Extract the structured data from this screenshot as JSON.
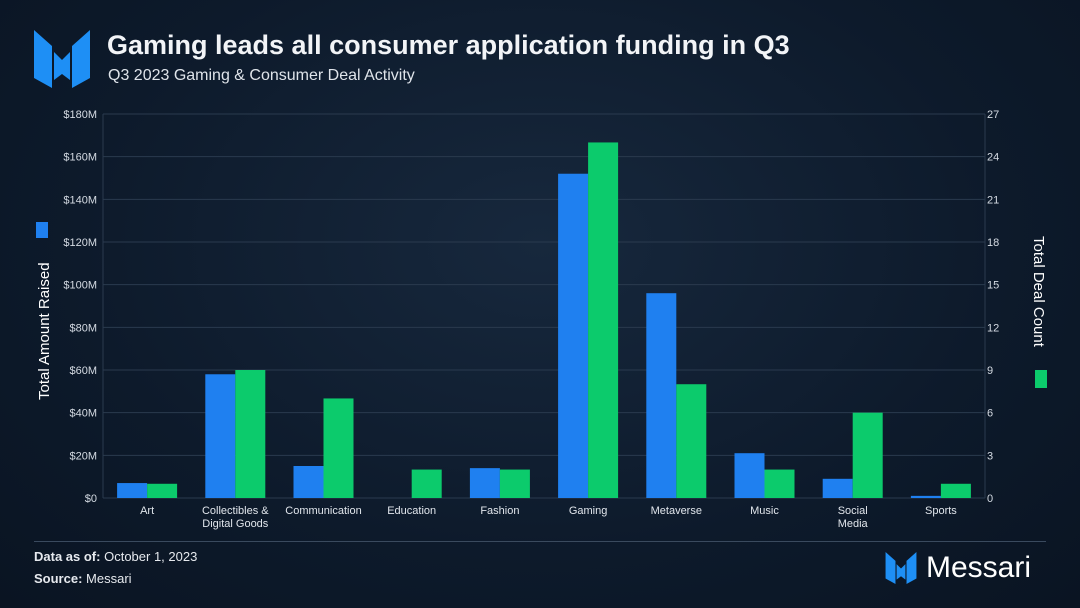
{
  "header": {
    "title": "Gaming leads all consumer application funding in Q3",
    "subtitle": "Q3 2023 Gaming & Consumer Deal Activity"
  },
  "footer": {
    "data_as_of_label": "Data as of:",
    "data_as_of": "October 1, 2023",
    "source_label": "Source:",
    "source": "Messari",
    "brand": "Messari"
  },
  "colors": {
    "amount": "#1f80f0",
    "count": "#0ccb6c",
    "grid": "#2a3a4e"
  },
  "chart_data": {
    "type": "bar",
    "categories": [
      "Art",
      "Collectibles & Digital Goods",
      "Communication",
      "Education",
      "Fashion",
      "Gaming",
      "Metaverse",
      "Music",
      "Social Media",
      "Sports"
    ],
    "series": [
      {
        "name": "Total Amount Raised",
        "axis": "left",
        "unit": "$M",
        "values": [
          7,
          58,
          15,
          0,
          14,
          152,
          96,
          21,
          9,
          1
        ]
      },
      {
        "name": "Total Deal Count",
        "axis": "right",
        "values": [
          1,
          9,
          7,
          2,
          2,
          25,
          8,
          2,
          6,
          1
        ]
      }
    ],
    "y_left": {
      "label": "Total Amount Raised",
      "ylim": [
        0,
        180
      ],
      "ticks": [
        "$0",
        "$20M",
        "$40M",
        "$60M",
        "$80M",
        "$100M",
        "$120M",
        "$140M",
        "$160M",
        "$180M"
      ]
    },
    "y_right": {
      "label": "Total Deal Count",
      "ylim": [
        0,
        27
      ],
      "ticks": [
        "0",
        "3",
        "6",
        "9",
        "12",
        "15",
        "18",
        "21",
        "24",
        "27"
      ]
    },
    "grid": true
  }
}
